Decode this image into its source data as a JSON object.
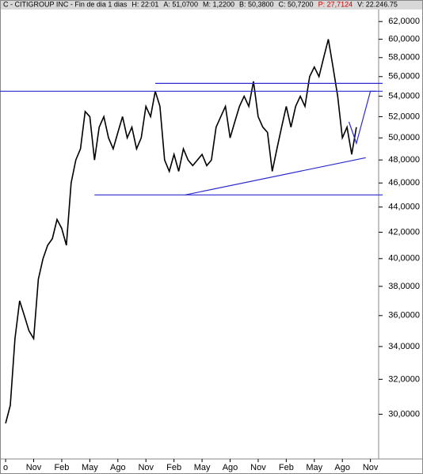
{
  "header": [
    {
      "text": "C - CITIGROUP INC - Fin de dia 1 dias",
      "color": "#000000"
    },
    {
      "text": "H: 22:01",
      "color": "#000000"
    },
    {
      "text": "A: 51,0700",
      "color": "#000000"
    },
    {
      "text": "M: 1,2200",
      "color": "#000000"
    },
    {
      "text": "B: 50,3800",
      "color": "#000000"
    },
    {
      "text": "C: 50,7200",
      "color": "#000000"
    },
    {
      "text": "P: 27,7124",
      "color": "#cc0000"
    },
    {
      "text": "V: 22.246.75",
      "color": "#000000"
    }
  ],
  "chart_data": {
    "type": "line",
    "log_scale": true,
    "color": "#000000",
    "line_color": "#2a2ad0",
    "x": [
      0,
      0.5,
      1,
      1.5,
      2,
      2.5,
      3,
      3.5,
      4,
      4.5,
      5,
      5.5,
      6,
      6.5,
      7,
      7.5,
      8,
      8.5,
      9,
      9.5,
      10,
      10.5,
      11,
      11.5,
      12,
      12.5,
      13,
      13.5,
      14,
      14.5,
      15,
      15.5,
      16,
      16.5,
      17,
      17.5,
      18,
      18.5,
      19,
      19.5,
      20,
      20.5,
      21,
      21.5,
      22,
      22.5,
      23,
      23.5,
      24,
      24.5,
      25,
      25.5,
      26,
      26.5,
      27,
      27.5,
      28,
      28.5,
      29,
      29.5,
      30,
      30.5,
      31,
      31.5,
      32,
      32.5,
      33,
      33.5,
      34,
      34.5,
      35,
      35.5,
      36,
      36.5,
      37,
      37.5
    ],
    "values": [
      29.5,
      30.5,
      34.5,
      37,
      36,
      35,
      34.5,
      38.5,
      40,
      41,
      41.5,
      43,
      42.3,
      41,
      46,
      48,
      49,
      52.5,
      52,
      48,
      51,
      52,
      50,
      49,
      50.5,
      52,
      50,
      51,
      49,
      50,
      53,
      52,
      54.5,
      53,
      48,
      47,
      48.5,
      47,
      49,
      48,
      47.5,
      48,
      48.5,
      47.5,
      48,
      51,
      52,
      53,
      50,
      51.5,
      53,
      54,
      53,
      55.5,
      52,
      51,
      50.5,
      47,
      49,
      51,
      53,
      51,
      53,
      54,
      53,
      56,
      57,
      56,
      58,
      60,
      57,
      54,
      50,
      51,
      48.5,
      51
    ],
    "trendlines": [
      {
        "x": [
          -0.6,
          40.3
        ],
        "y": [
          54.5,
          54.5
        ]
      },
      {
        "x": [
          16,
          40.3
        ],
        "y": [
          55.3,
          55.3
        ]
      },
      {
        "x": [
          9.5,
          40.3
        ],
        "y": [
          45,
          45
        ]
      },
      {
        "x": [
          19.2,
          38.5
        ],
        "y": [
          45,
          48.2
        ]
      },
      {
        "x": [
          36.7,
          37.5,
          39,
          39.6
        ],
        "y": [
          51.5,
          49.5,
          54.5,
          54.5
        ]
      }
    ],
    "xlim": [
      -0.6,
      40.3
    ],
    "xticks": [
      {
        "value": 0,
        "label": "o"
      },
      {
        "value": 3,
        "label": "Nov"
      },
      {
        "value": 6,
        "label": "Feb"
      },
      {
        "value": 9,
        "label": "May"
      },
      {
        "value": 12,
        "label": "Ago"
      },
      {
        "value": 15,
        "label": "Nov"
      },
      {
        "value": 18,
        "label": "Feb"
      },
      {
        "value": 21,
        "label": "May"
      },
      {
        "value": 24,
        "label": "Ago"
      },
      {
        "value": 27,
        "label": "Nov"
      },
      {
        "value": 30,
        "label": "Feb"
      },
      {
        "value": 33,
        "label": "May"
      },
      {
        "value": 36,
        "label": "Ago"
      },
      {
        "value": 39,
        "label": "Nov"
      }
    ],
    "ylim": [
      27.7,
      63.3
    ],
    "yticks": [
      {
        "value": 30,
        "label": "30,0000"
      },
      {
        "value": 32,
        "label": "32,0000"
      },
      {
        "value": 34,
        "label": "34,0000"
      },
      {
        "value": 36,
        "label": "36,0000"
      },
      {
        "value": 38,
        "label": "38,0000"
      },
      {
        "value": 40,
        "label": "40,0000"
      },
      {
        "value": 42,
        "label": "42,0000"
      },
      {
        "value": 44,
        "label": "44,0000"
      },
      {
        "value": 46,
        "label": "46,0000"
      },
      {
        "value": 48,
        "label": "48,0000"
      },
      {
        "value": 50,
        "label": "50,0000"
      },
      {
        "value": 52,
        "label": "52,0000"
      },
      {
        "value": 54,
        "label": "54,0000"
      },
      {
        "value": 56,
        "label": "56,0000"
      },
      {
        "value": 58,
        "label": "58,0000"
      },
      {
        "value": 60,
        "label": "60,0000"
      },
      {
        "value": 62,
        "label": "62,0000"
      }
    ]
  }
}
